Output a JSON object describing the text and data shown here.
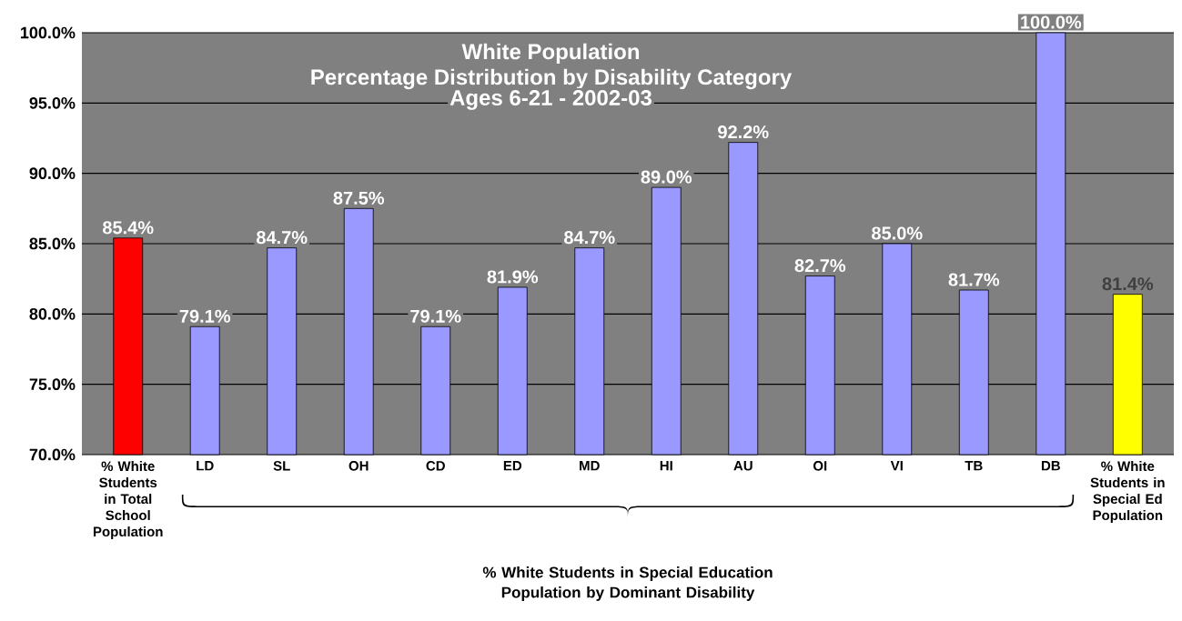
{
  "chart_data": {
    "type": "bar",
    "title": "White Population",
    "subtitle": "Percentage Distribution by Disability Category",
    "annotations": [
      "Ages 6-21 - 2002-03"
    ],
    "xlabel": "% White Students in Special Education Population by Dominant Disability",
    "categories": [
      "% White Students in Total School Population",
      "LD",
      "SL",
      "OH",
      "CD",
      "ED",
      "MD",
      "HI",
      "AU",
      "OI",
      "VI",
      "TB",
      "DB",
      "% White Students in Special Ed Population"
    ],
    "values": [
      85.4,
      79.1,
      84.7,
      87.5,
      79.1,
      81.9,
      84.7,
      89.0,
      92.2,
      82.7,
      85.0,
      81.7,
      100.0,
      81.4
    ],
    "colors": [
      "#ff0000",
      "#9999ff",
      "#9999ff",
      "#9999ff",
      "#9999ff",
      "#9999ff",
      "#9999ff",
      "#9999ff",
      "#9999ff",
      "#9999ff",
      "#9999ff",
      "#9999ff",
      "#9999ff",
      "#ffff00"
    ],
    "value_labels": [
      "85.4%",
      "79.1%",
      "84.7%",
      "87.5%",
      "79.1%",
      "81.9%",
      "84.7%",
      "89.0%",
      "92.2%",
      "82.7%",
      "85.0%",
      "81.7%",
      "100.0%",
      "81.4%"
    ],
    "ylim": [
      70,
      100
    ],
    "yticks": [
      {
        "value": 70,
        "label": "70.0%"
      },
      {
        "value": 75,
        "label": "75.0%"
      },
      {
        "value": 80,
        "label": "80.0%"
      },
      {
        "value": 85,
        "label": "85.0%"
      },
      {
        "value": 90,
        "label": "90.0%"
      },
      {
        "value": 95,
        "label": "95.0%"
      },
      {
        "value": 100,
        "label": "100.0%"
      }
    ],
    "grid": "y"
  }
}
